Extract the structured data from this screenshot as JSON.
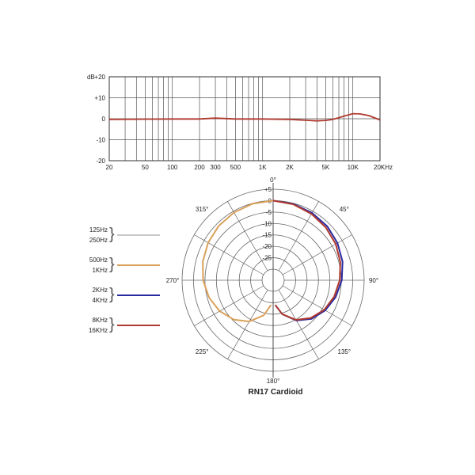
{
  "chart_data": [
    {
      "type": "line",
      "x_scale": "log",
      "y_label": "dB",
      "y_ticks": [
        "+20",
        "+10",
        "0",
        "-10",
        "-20"
      ],
      "ylim": [
        -20,
        20
      ],
      "xlim": [
        20,
        20000
      ],
      "x_tick_values": [
        20,
        50,
        100,
        200,
        300,
        500,
        1000,
        2000,
        5000,
        10000,
        20000
      ],
      "x_tick_labels": [
        "20",
        "50",
        "100",
        "200",
        "300",
        "500",
        "1K",
        "2K",
        "5K",
        "10K",
        "20KHz"
      ],
      "grid": true,
      "series": [
        {
          "color": "#b03a2e",
          "x": [
            20,
            50,
            100,
            200,
            300,
            500,
            1000,
            2000,
            3000,
            4000,
            5000,
            6000,
            7000,
            8000,
            10000,
            12000,
            15000,
            18000,
            20000
          ],
          "y": [
            -0.3,
            -0.2,
            -0.1,
            -0.1,
            0.3,
            -0.1,
            -0.1,
            -0.3,
            -0.7,
            -1.0,
            -0.8,
            -0.3,
            0.5,
            1.3,
            2.4,
            2.3,
            1.5,
            0.2,
            -0.6
          ]
        }
      ]
    },
    {
      "type": "polar",
      "title": "RN17 Cardioid",
      "angle_labels": [
        "0°",
        "45°",
        "90°",
        "135°",
        "180°",
        "225°",
        "270°",
        "315°"
      ],
      "r_labels": [
        "+5",
        "0",
        "-5",
        "-10",
        "-15",
        "-20",
        "-25"
      ],
      "rlim": [
        -30,
        5
      ],
      "legend": [
        {
          "labels": [
            "125Hz",
            "250Hz"
          ],
          "color": "#c8c8c8"
        },
        {
          "labels": [
            "500Hz",
            "1KHz"
          ],
          "color": "#d9a15a"
        },
        {
          "labels": [
            "2KHz",
            "4KHz"
          ],
          "color": "#2a2aa0"
        },
        {
          "labels": [
            "8KHz",
            "16KHz"
          ],
          "color": "#b03a2e"
        }
      ],
      "series": [
        {
          "color": "#d9a15a",
          "side": "left",
          "angles": [
            0,
            15,
            30,
            45,
            60,
            75,
            90,
            105,
            120,
            135,
            150,
            165,
            175
          ],
          "db": [
            0,
            -0.2,
            -0.6,
            -1.2,
            -2.0,
            -3.0,
            -4.2,
            -5.8,
            -7.8,
            -10.5,
            -14.0,
            -19.0,
            -24.0
          ]
        },
        {
          "color": "#2a2aa0",
          "side": "right",
          "angles": [
            0,
            15,
            30,
            45,
            60,
            75,
            90,
            105,
            120,
            135,
            150,
            165,
            175
          ],
          "db": [
            0,
            -0.3,
            -0.8,
            -1.4,
            -2.3,
            -3.4,
            -4.8,
            -6.5,
            -8.5,
            -11.0,
            -14.5,
            -19.5,
            -24.0
          ]
        },
        {
          "color": "#b03a2e",
          "side": "right",
          "angles": [
            0,
            15,
            30,
            45,
            60,
            75,
            90,
            105,
            120,
            135,
            150,
            165,
            175
          ],
          "db": [
            0,
            -0.5,
            -1.3,
            -2.2,
            -3.2,
            -4.4,
            -5.7,
            -7.2,
            -9.0,
            -11.5,
            -14.8,
            -19.5,
            -24.0
          ]
        }
      ]
    }
  ]
}
